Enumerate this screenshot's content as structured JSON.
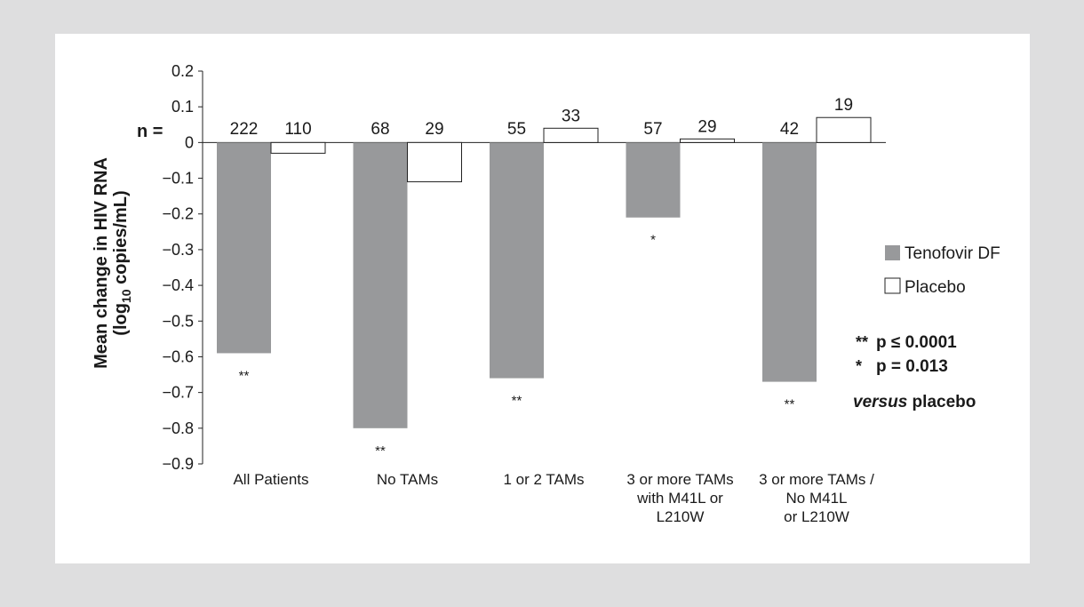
{
  "chart_data": {
    "type": "bar",
    "ylabel_line1": "Mean change in HIV RNA",
    "ylabel_line2_pre": "(log",
    "ylabel_line2_sub": "10",
    "ylabel_line2_post": " copies/mL)",
    "n_label": "n =",
    "ylim": [
      -0.9,
      0.2
    ],
    "yticks": [
      "0.2",
      "0.1",
      "0",
      "−0.1",
      "−0.2",
      "−0.3",
      "−0.4",
      "−0.5",
      "−0.6",
      "−0.7",
      "−0.8",
      "−0.9"
    ],
    "categories": [
      [
        "All Patients"
      ],
      [
        "No TAMs"
      ],
      [
        "1 or 2 TAMs"
      ],
      [
        "3 or more TAMs",
        "with M41L or",
        "L210W"
      ],
      [
        "3 or more TAMs /",
        "No M41L",
        "or L210W"
      ]
    ],
    "series": [
      {
        "name": "Tenofovir DF",
        "color": "#98999b",
        "values": [
          -0.59,
          -0.8,
          -0.66,
          -0.21,
          -0.67
        ],
        "n": [
          "222",
          "68",
          "55",
          "57",
          "42"
        ],
        "significance": [
          "**",
          "**",
          "**",
          "*",
          "**"
        ]
      },
      {
        "name": "Placebo",
        "color": "#ffffff",
        "values": [
          -0.03,
          -0.11,
          0.04,
          0.01,
          0.07
        ],
        "n": [
          "110",
          "29",
          "33",
          "29",
          "19"
        ]
      }
    ],
    "legend_position": "right",
    "notes": [
      {
        "marker": "**",
        "text": "p ≤ 0.0001"
      },
      {
        "marker": "*",
        "text": "p = 0.013"
      }
    ],
    "versus_em": "versus",
    "versus_rest": " placebo",
    "grid": false
  }
}
